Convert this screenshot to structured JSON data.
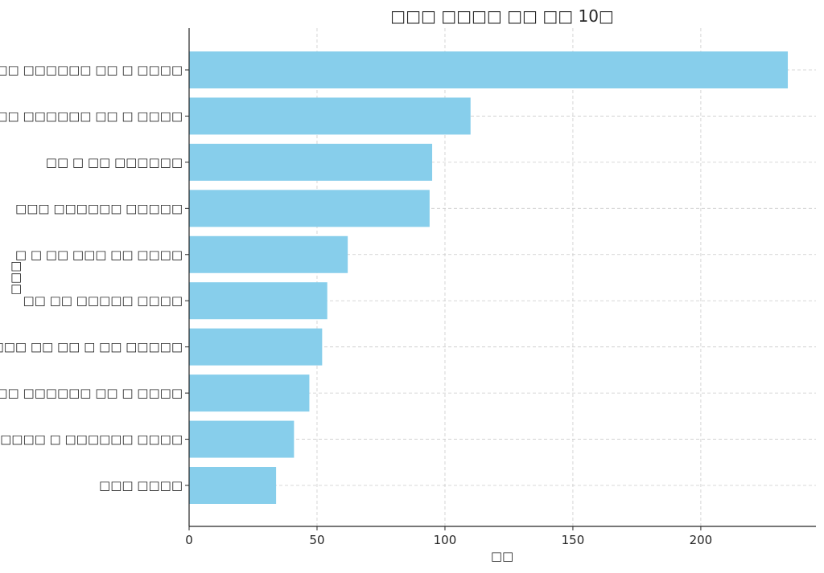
{
  "chart_data": {
    "type": "bar",
    "orientation": "horizontal",
    "title": "□□□ □□□□ □□ □□ 10□",
    "xlabel": "□□",
    "ylabel": "□□□",
    "xlim": [
      0,
      245
    ],
    "xticks": [
      0,
      50,
      100,
      150,
      200
    ],
    "grid": true,
    "color": "#87CEEB",
    "categories": [
      "□□ □□□□□□ □□ □ □□□□",
      "□□□ □□□□□□ □□ □ □□□□",
      "□□ □ □□ □□□□□□",
      "□□□ □□□□□□ □□□□□",
      "□ □ □□ □□□ □□ □□□□",
      "□□ □□ □□□□□ □□□□",
      "□□□□□□□ □□ □□ □ □□ □□□□□",
      "□□□ □□ □□□□□□ □□ □ □□□□",
      "□□□□□□□ □ □□□□□□ □□□□",
      "□□□ □□□□"
    ],
    "values": [
      234,
      110,
      95,
      94,
      62,
      54,
      52,
      47,
      41,
      34
    ]
  }
}
